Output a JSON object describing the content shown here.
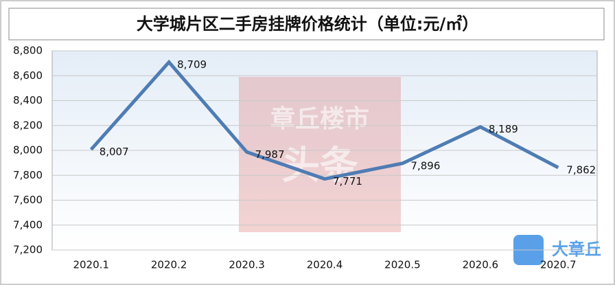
{
  "chart_data": {
    "type": "line",
    "title": "大学城片区二手房挂牌价格统计（单位:元/㎡）",
    "categories": [
      "2020.1",
      "2020.2",
      "2020.3",
      "2020.4",
      "2020.5",
      "2020.6",
      "2020.7"
    ],
    "values": [
      8007,
      8709,
      7987,
      7771,
      7896,
      8189,
      7862
    ],
    "value_labels": [
      "8,007",
      "8,709",
      "7,987",
      "7,771",
      "7,896",
      "8,189",
      "7,862"
    ],
    "color": "#4f7cb3",
    "ylim": [
      7200,
      8800
    ],
    "yticks": [
      {
        "value": 7200,
        "label": "7,200"
      },
      {
        "value": 7400,
        "label": "7,400"
      },
      {
        "value": 7600,
        "label": "7,600"
      },
      {
        "value": 7800,
        "label": "7,800"
      },
      {
        "value": 8000,
        "label": "8,000"
      },
      {
        "value": 8200,
        "label": "8,200"
      },
      {
        "value": 8400,
        "label": "8,400"
      },
      {
        "value": 8600,
        "label": "8,600"
      },
      {
        "value": 8800,
        "label": "8,800"
      }
    ],
    "grid": true
  },
  "watermarks": [
    "章丘楼市",
    "头条",
    "大章丘"
  ]
}
